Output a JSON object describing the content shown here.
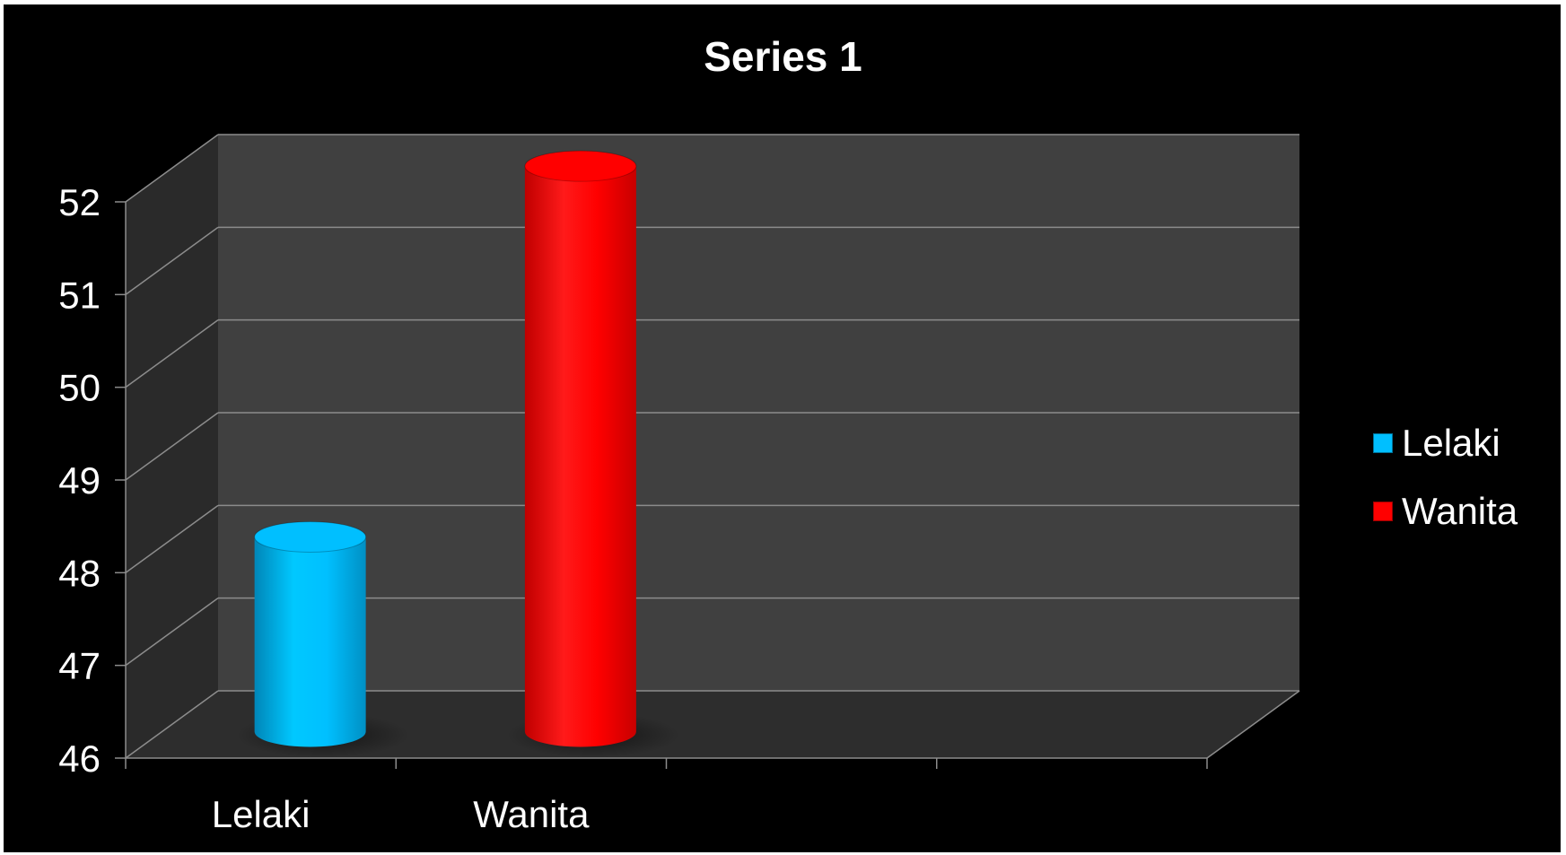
{
  "chart_data": {
    "type": "bar",
    "style": "3d-cylinder",
    "title": "Series 1",
    "xlabel": "",
    "ylabel": "",
    "categories": [
      "Lelaki",
      "Wanita"
    ],
    "series": [
      {
        "name": "Lelaki",
        "category": "Lelaki",
        "value": 48.1,
        "color": "#00BFFF"
      },
      {
        "name": "Wanita",
        "category": "Wanita",
        "value": 52.1,
        "color": "#FF0000"
      }
    ],
    "ylim": [
      46,
      52
    ],
    "yticks": [
      "46",
      "47",
      "48",
      "49",
      "50",
      "51",
      "52"
    ],
    "grid": true,
    "legend_position": "right"
  },
  "colors": {
    "background": "#000000",
    "back_wall": "#404040",
    "side_wall": "#2a2a2a",
    "floor": "#2d2d2d",
    "gridline": "#8c8c8c",
    "text": "#ffffff"
  }
}
